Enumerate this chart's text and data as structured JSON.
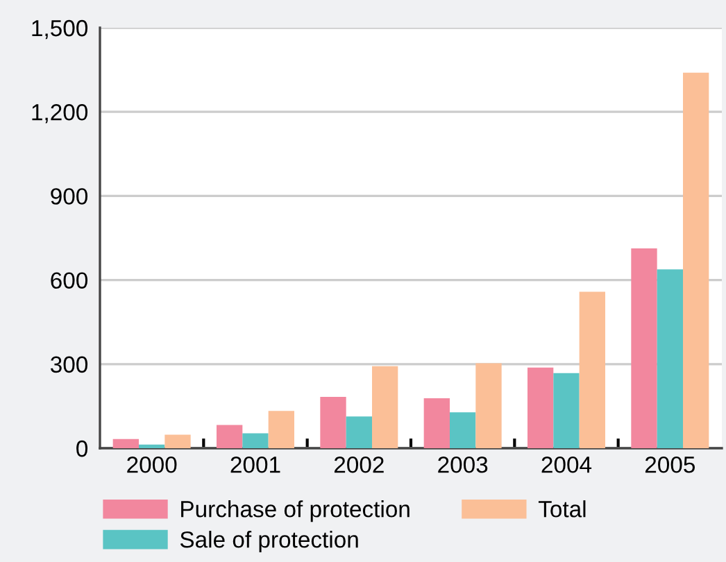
{
  "chart_data": {
    "type": "bar",
    "categories": [
      "2000",
      "2001",
      "2002",
      "2003",
      "2004",
      "2005"
    ],
    "series": [
      {
        "name": "Purchase of protection",
        "color": "#f2879e",
        "values": [
          33,
          83,
          183,
          178,
          288,
          713
        ]
      },
      {
        "name": "Sale of protection",
        "color": "#5ac4c4",
        "values": [
          13,
          53,
          113,
          128,
          268,
          638
        ]
      },
      {
        "name": "Total",
        "color": "#fbbf97",
        "values": [
          48,
          133,
          293,
          303,
          558,
          1340
        ]
      }
    ],
    "ylim": [
      0,
      1500
    ],
    "yticks": [
      {
        "value": 0,
        "label": "0"
      },
      {
        "value": 300,
        "label": "300"
      },
      {
        "value": 600,
        "label": "600"
      },
      {
        "value": 900,
        "label": "900"
      },
      {
        "value": 1200,
        "label": "1,200"
      },
      {
        "value": 1500,
        "label": "1,500"
      }
    ],
    "grid": "y",
    "legend": "bottom"
  }
}
